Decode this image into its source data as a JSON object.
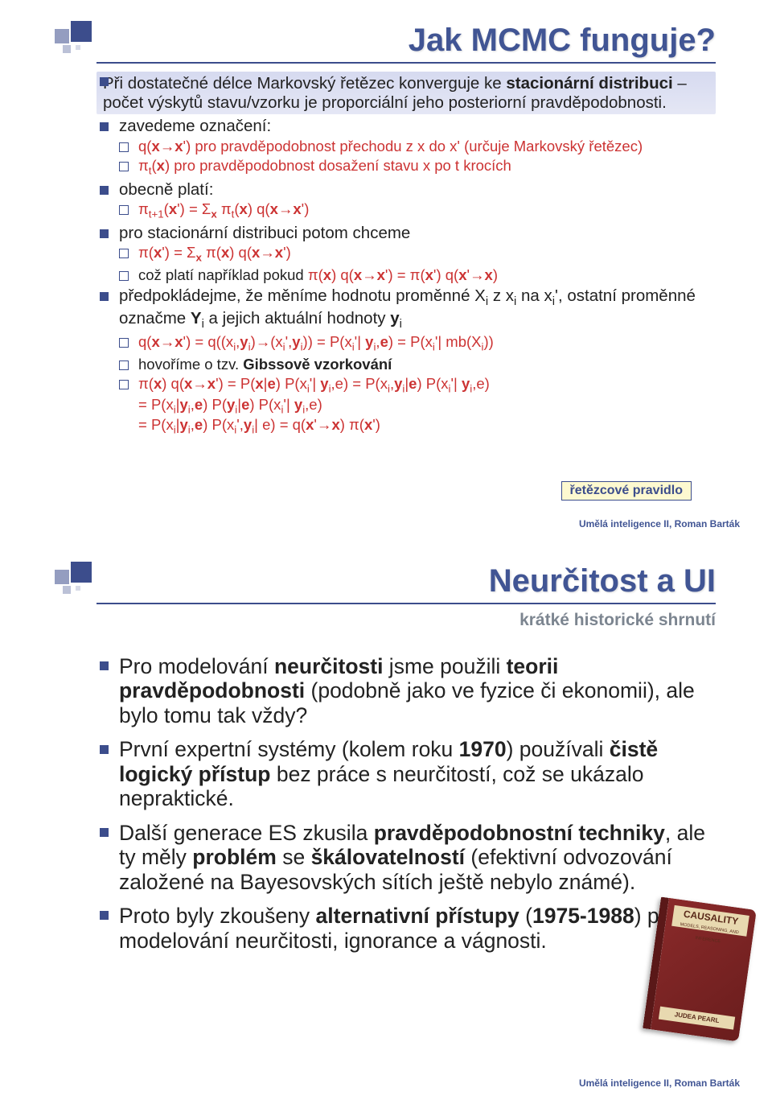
{
  "colors": {
    "primary": "#3c4d8c",
    "title": "#415594",
    "subtitle": "#7c8590",
    "red": "#cc3333",
    "highlight_bg_top": "#d6daf0",
    "highlight_bg_bottom": "#e5e7f5",
    "callout_bg": "#fdf9d0",
    "book_cover": "#8a2a2a",
    "book_spine": "#5a1818",
    "book_label_bg": "#e8d9b0"
  },
  "typography": {
    "title_pt": 40,
    "subtitle_pt": 21,
    "body_pt": 20.5,
    "bullet2_pt": 18.5,
    "large_body_pt": 26.5,
    "footer_pt": 12,
    "callout_pt": 16
  },
  "slide1": {
    "title": "Jak MCMC funguje?",
    "items": [
      {
        "level": 1,
        "highlight": true,
        "html": "Při dostatečné délce Markovský řetězec konverguje ke <b>stacionární distribuci</b> – počet výskytů stavu/vzorku je proporciální jeho posteriorní pravděpodobnosti."
      },
      {
        "level": 1,
        "html": "zavedeme označení:"
      },
      {
        "level": 2,
        "red": true,
        "html": "q(<b>x</b>→<b>x</b>') pro pravděpodobnost přechodu z x do x' (určuje Markovský řetězec)"
      },
      {
        "level": 2,
        "red": true,
        "html": "π<sub>t</sub>(<b>x</b>) pro pravděpodobnost dosažení stavu x po t krocích"
      },
      {
        "level": 1,
        "html": "obecně platí:"
      },
      {
        "level": 2,
        "red": true,
        "html": "π<sub>t+1</sub>(<b>x</b>') = Σ<sub><b>x</b></sub> π<sub>t</sub>(<b>x</b>) q(<b>x</b>→<b>x</b>')"
      },
      {
        "level": 1,
        "html": "pro stacionární distribuci potom chceme"
      },
      {
        "level": 2,
        "red": true,
        "html": "π(<b>x</b>') = Σ<sub><b>x</b></sub> π(<b>x</b>) q(<b>x</b>→<b>x</b>')"
      },
      {
        "level": 2,
        "html": "což platí například pokud <span class=\"red\">π(<b>x</b>) q(<b>x</b>→<b>x</b>') = π(<b>x</b>') q(<b>x</b>'→<b>x</b>)</span>"
      },
      {
        "level": 1,
        "html": "předpokládejme, že měníme hodnotu proměnné X<sub>i</sub> z x<sub>i</sub> na x<sub>i</sub>', ostatní proměnné označme <b>Y</b><sub>i</sub> a jejich aktuální hodnoty <b>y</b><sub>i</sub>"
      },
      {
        "level": 2,
        "red": true,
        "html": "q(<b>x</b>→<b>x</b>') = q((x<sub>i</sub>,<b>y</b><sub>i</sub>)→(x<sub>i</sub>',<b>y</b><sub>i</sub>)) = P(x<sub>i</sub>'| <b>y</b><sub>i</sub>,<b>e</b>) = P(x<sub>i</sub>'| mb(X<sub>i</sub>))"
      },
      {
        "level": 2,
        "html": "hovoříme o tzv. <b>Gibssově vzorkování</b>"
      },
      {
        "level": 2,
        "red": true,
        "html": "π(<b>x</b>) q(<b>x</b>→<b>x</b>') = P(<b>x</b>|<b>e</b>) P(x<sub>i</sub>'| <b>y</b><sub>i</sub>,e) = P(x<sub>i</sub>,<b>y</b><sub>i</sub>|<b>e</b>) P(x<sub>i</sub>'| <b>y</b><sub>i</sub>,e)<br>= P(x<sub>i</sub>|<b>y</b><sub>i</sub>,<b>e</b>) P(<b>y</b><sub>i</sub>|<b>e</b>) P(x<sub>i</sub>'| <b>y</b><sub>i</sub>,e)<br>= P(x<sub>i</sub>|<b>y</b><sub>i</sub>,<b>e</b>) P(x<sub>i</sub>',<b>y</b><sub>i</sub>| e) = q(<b>x</b>'→<b>x</b>) π(<b>x</b>')"
      }
    ],
    "callout": "řetězcové pravidlo"
  },
  "slide2": {
    "title": "Neurčitost a UI",
    "subtitle": "krátké historické shrnutí",
    "items": [
      {
        "html": "Pro modelování <b>neurčitosti</b> jsme použili <b>teorii pravděpodobnosti</b> (podobně jako ve fyzice či ekonomii), ale bylo tomu tak vždy?"
      },
      {
        "html": "První expertní systémy (kolem roku <b>1970</b>) používali <b>čistě logický přístup</b> bez práce s neurčitostí, což se ukázalo nepraktické."
      },
      {
        "html": "Další generace ES zkusila <b>pravděpodobnostní techniky</b>, ale ty měly <b>problém</b> se <b>škálovatelností</b> (efektivní odvozování založené na Bayesovských sítích ještě nebylo známé)."
      },
      {
        "html": "Proto byly zkoušeny <b>alternativní přístupy</b> (<b>1975-1988</b>) pro modelování neurčitosti, ignorance a vágnosti."
      }
    ],
    "book": {
      "title": "CAUSALITY",
      "subtitle": "MODELS, REASONING, AND INFERENCE",
      "author": "JUDEA PEARL"
    }
  },
  "footer": "Umělá inteligence II, Roman Barták"
}
